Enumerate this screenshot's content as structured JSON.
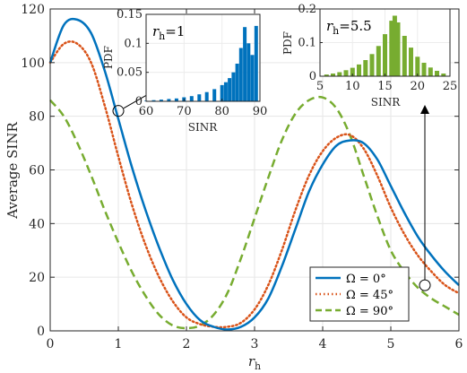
{
  "chart_data": [
    {
      "type": "line",
      "xlabel": "r",
      "xlabel_sub": "h",
      "ylabel": "Average SINR",
      "xlim": [
        0,
        6
      ],
      "ylim": [
        0,
        120
      ],
      "xticks": [
        "0",
        "1",
        "2",
        "3",
        "4",
        "5",
        "6"
      ],
      "yticks": [
        "0",
        "20",
        "40",
        "60",
        "80",
        "100",
        "120"
      ],
      "grid": true,
      "legend_position": "bottom-right",
      "x": [
        0,
        0.2,
        0.4,
        0.6,
        0.8,
        1.0,
        1.2,
        1.4,
        1.6,
        1.8,
        2.0,
        2.2,
        2.4,
        2.6,
        2.8,
        3.0,
        3.2,
        3.4,
        3.6,
        3.8,
        4.0,
        4.2,
        4.4,
        4.6,
        4.8,
        5.0,
        5.2,
        5.4,
        5.6,
        5.8,
        6.0
      ],
      "series": [
        {
          "name": "Ω = 0°",
          "color": "#0072BD",
          "style": "solid",
          "values": [
            100,
            114,
            116,
            111,
            97,
            79,
            61,
            45,
            31,
            19,
            10,
            4,
            1.5,
            0.5,
            1.5,
            5,
            12,
            24,
            38,
            52,
            62,
            69,
            71,
            70,
            64,
            54,
            44,
            35,
            28,
            22,
            17
          ]
        },
        {
          "name": "Ω = 45°",
          "color": "#D95319",
          "style": "dotted",
          "values": [
            100,
            107,
            107,
            100,
            84,
            65,
            47,
            32,
            20,
            11,
            5,
            2.5,
            1.5,
            1.5,
            3,
            8,
            17,
            30,
            45,
            58,
            67,
            72,
            73,
            68,
            58,
            46,
            36,
            28,
            22,
            17,
            14
          ]
        },
        {
          "name": "Ω = 90°",
          "color": "#77AC30",
          "style": "dashed",
          "values": [
            86,
            80,
            70,
            58,
            45,
            33,
            22,
            13,
            6,
            2,
            1,
            2,
            6,
            14,
            27,
            42,
            57,
            71,
            81,
            86,
            87,
            83,
            73,
            58,
            43,
            30,
            22,
            16,
            12,
            9,
            6
          ]
        }
      ],
      "markers": [
        {
          "x": 1.0,
          "y": 82
        },
        {
          "x": 5.5,
          "y": 17
        }
      ]
    },
    {
      "type": "bar",
      "annotation_label": "r",
      "annotation_sub": "h",
      "annotation_value": "=1",
      "xlabel": "SINR",
      "ylabel": "PDF",
      "xlim": [
        60,
        90
      ],
      "ylim": [
        0,
        0.15
      ],
      "xticks": [
        "60",
        "70",
        "80",
        "90"
      ],
      "yticks": [
        "0",
        "0.05",
        "0.1",
        "0.15"
      ],
      "color": "#0072BD",
      "x": [
        60,
        62,
        64,
        66,
        68,
        70,
        72,
        74,
        76,
        78,
        80,
        81,
        82,
        83,
        84,
        85,
        86,
        87,
        88,
        89
      ],
      "values": [
        0.001,
        0.002,
        0.003,
        0.004,
        0.005,
        0.007,
        0.009,
        0.012,
        0.016,
        0.021,
        0.028,
        0.033,
        0.04,
        0.05,
        0.065,
        0.092,
        0.128,
        0.1,
        0.08,
        0.13
      ]
    },
    {
      "type": "bar",
      "annotation_label": "r",
      "annotation_sub": "h",
      "annotation_value": "=5.5",
      "xlabel": "SINR",
      "ylabel": "PDF",
      "xlim": [
        5,
        25
      ],
      "ylim": [
        0,
        0.2
      ],
      "xticks": [
        "5",
        "10",
        "15",
        "20",
        "25"
      ],
      "yticks": [
        "0",
        "0.1",
        "0.2"
      ],
      "color": "#77AC30",
      "x": [
        6,
        7,
        8,
        9,
        10,
        11,
        12,
        13,
        14,
        15,
        16,
        16.5,
        17,
        18,
        19,
        20,
        21,
        22,
        23,
        24
      ],
      "values": [
        0.005,
        0.008,
        0.012,
        0.018,
        0.025,
        0.035,
        0.048,
        0.066,
        0.09,
        0.125,
        0.165,
        0.18,
        0.16,
        0.12,
        0.085,
        0.058,
        0.04,
        0.026,
        0.016,
        0.008
      ]
    }
  ]
}
